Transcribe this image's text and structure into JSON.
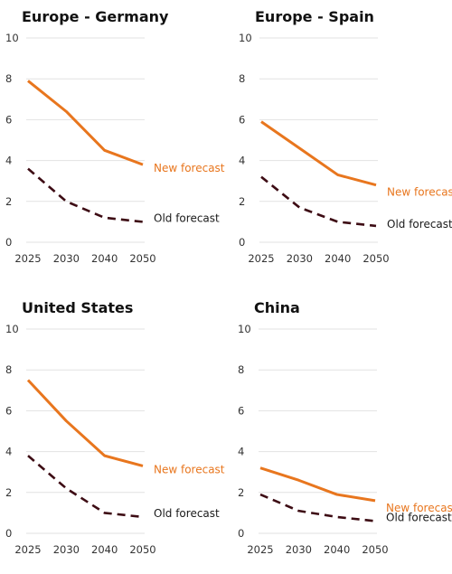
{
  "colors": {
    "new": "#E8761E",
    "old": "#3D0C14",
    "grid": "#E2E2E2",
    "text": "#333333"
  },
  "chart_data": [
    {
      "type": "line",
      "title": "Europe - Germany",
      "x": [
        "2025",
        "2030",
        "2040",
        "2050"
      ],
      "ylim": [
        0,
        10
      ],
      "yticks": [
        "0",
        "2",
        "4",
        "6",
        "8",
        "10"
      ],
      "grid": true,
      "series": [
        {
          "name": "New forecast",
          "values": [
            7.9,
            6.4,
            4.5,
            3.8
          ],
          "style": "solid"
        },
        {
          "name": "Old forecast",
          "values": [
            3.6,
            2.0,
            1.2,
            1.0
          ],
          "style": "dashed"
        }
      ]
    },
    {
      "type": "line",
      "title": "Europe - Spain",
      "x": [
        "2025",
        "2030",
        "2040",
        "2050"
      ],
      "ylim": [
        0,
        10
      ],
      "yticks": [
        "0",
        "2",
        "4",
        "6",
        "8",
        "10"
      ],
      "grid": true,
      "series": [
        {
          "name": "New forecast",
          "values": [
            5.9,
            4.6,
            3.3,
            2.8
          ],
          "style": "solid"
        },
        {
          "name": "Old forecast",
          "values": [
            3.2,
            1.7,
            1.0,
            0.8
          ],
          "style": "dashed"
        }
      ]
    },
    {
      "type": "line",
      "title": "United States",
      "x": [
        "2025",
        "2030",
        "2040",
        "2050"
      ],
      "ylim": [
        0,
        10
      ],
      "yticks": [
        "0",
        "2",
        "4",
        "6",
        "8",
        "10"
      ],
      "grid": true,
      "series": [
        {
          "name": "New forecast",
          "values": [
            7.5,
            5.5,
            3.8,
            3.3
          ],
          "style": "solid"
        },
        {
          "name": "Old forecast",
          "values": [
            3.8,
            2.2,
            1.0,
            0.8
          ],
          "style": "dashed"
        }
      ]
    },
    {
      "type": "line",
      "title": "China",
      "x": [
        "2025",
        "2030",
        "2040",
        "2050"
      ],
      "ylim": [
        0,
        10
      ],
      "yticks": [
        "0",
        "2",
        "4",
        "6",
        "8",
        "10"
      ],
      "grid": true,
      "series": [
        {
          "name": "New forecast",
          "values": [
            3.2,
            2.6,
            1.9,
            1.6
          ],
          "style": "solid"
        },
        {
          "name": "Old forecast",
          "values": [
            1.9,
            1.1,
            0.8,
            0.6
          ],
          "style": "dashed"
        }
      ]
    }
  ]
}
